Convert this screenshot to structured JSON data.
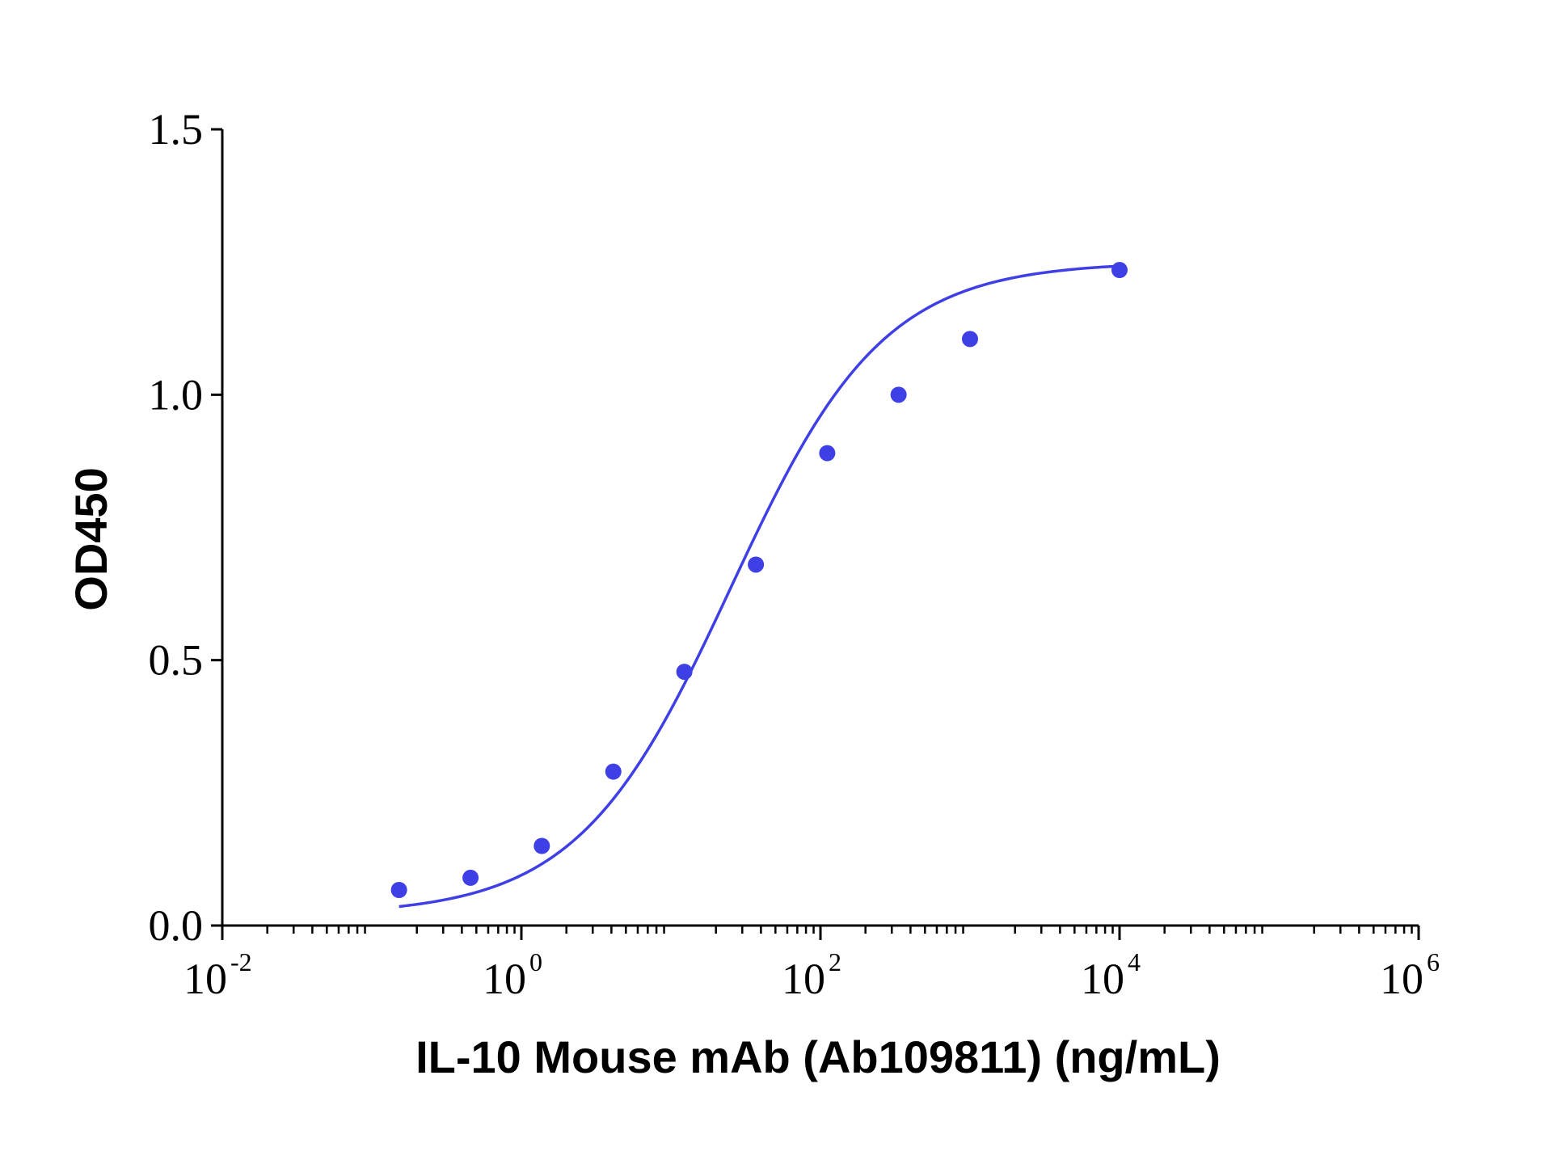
{
  "chart_data": {
    "type": "scatter",
    "title": "",
    "xlabel": "IL-10 Mouse mAb (Ab109811) (ng/mL)",
    "ylabel": "OD450",
    "x_scale": "log10",
    "xlim": [
      0.01,
      1000000
    ],
    "ylim": [
      0,
      1.5
    ],
    "x_ticks": [
      {
        "base": "10",
        "exp": "-2"
      },
      {
        "base": "10",
        "exp": "0"
      },
      {
        "base": "10",
        "exp": "2"
      },
      {
        "base": "10",
        "exp": "4"
      },
      {
        "base": "10",
        "exp": "6"
      }
    ],
    "y_ticks": [
      "0.0",
      "0.5",
      "1.0",
      "1.5"
    ],
    "grid": false,
    "legend": "none",
    "colors": {
      "series": "#3f3fe6",
      "axis": "#000000"
    },
    "series": [
      {
        "x": [
          0.152,
          0.457,
          1.37,
          4.12,
          12.3,
          37.0,
          111,
          333,
          1000,
          10000
        ],
        "y": [
          0.067,
          0.09,
          0.15,
          0.29,
          0.478,
          0.68,
          0.89,
          1.0,
          1.105,
          1.235
        ]
      }
    ],
    "fit": {
      "model": "4PL",
      "x_range": [
        0.152,
        10000
      ],
      "bottom": 0.02,
      "top": 1.25,
      "ec50": 25,
      "hill": 0.85
    }
  }
}
